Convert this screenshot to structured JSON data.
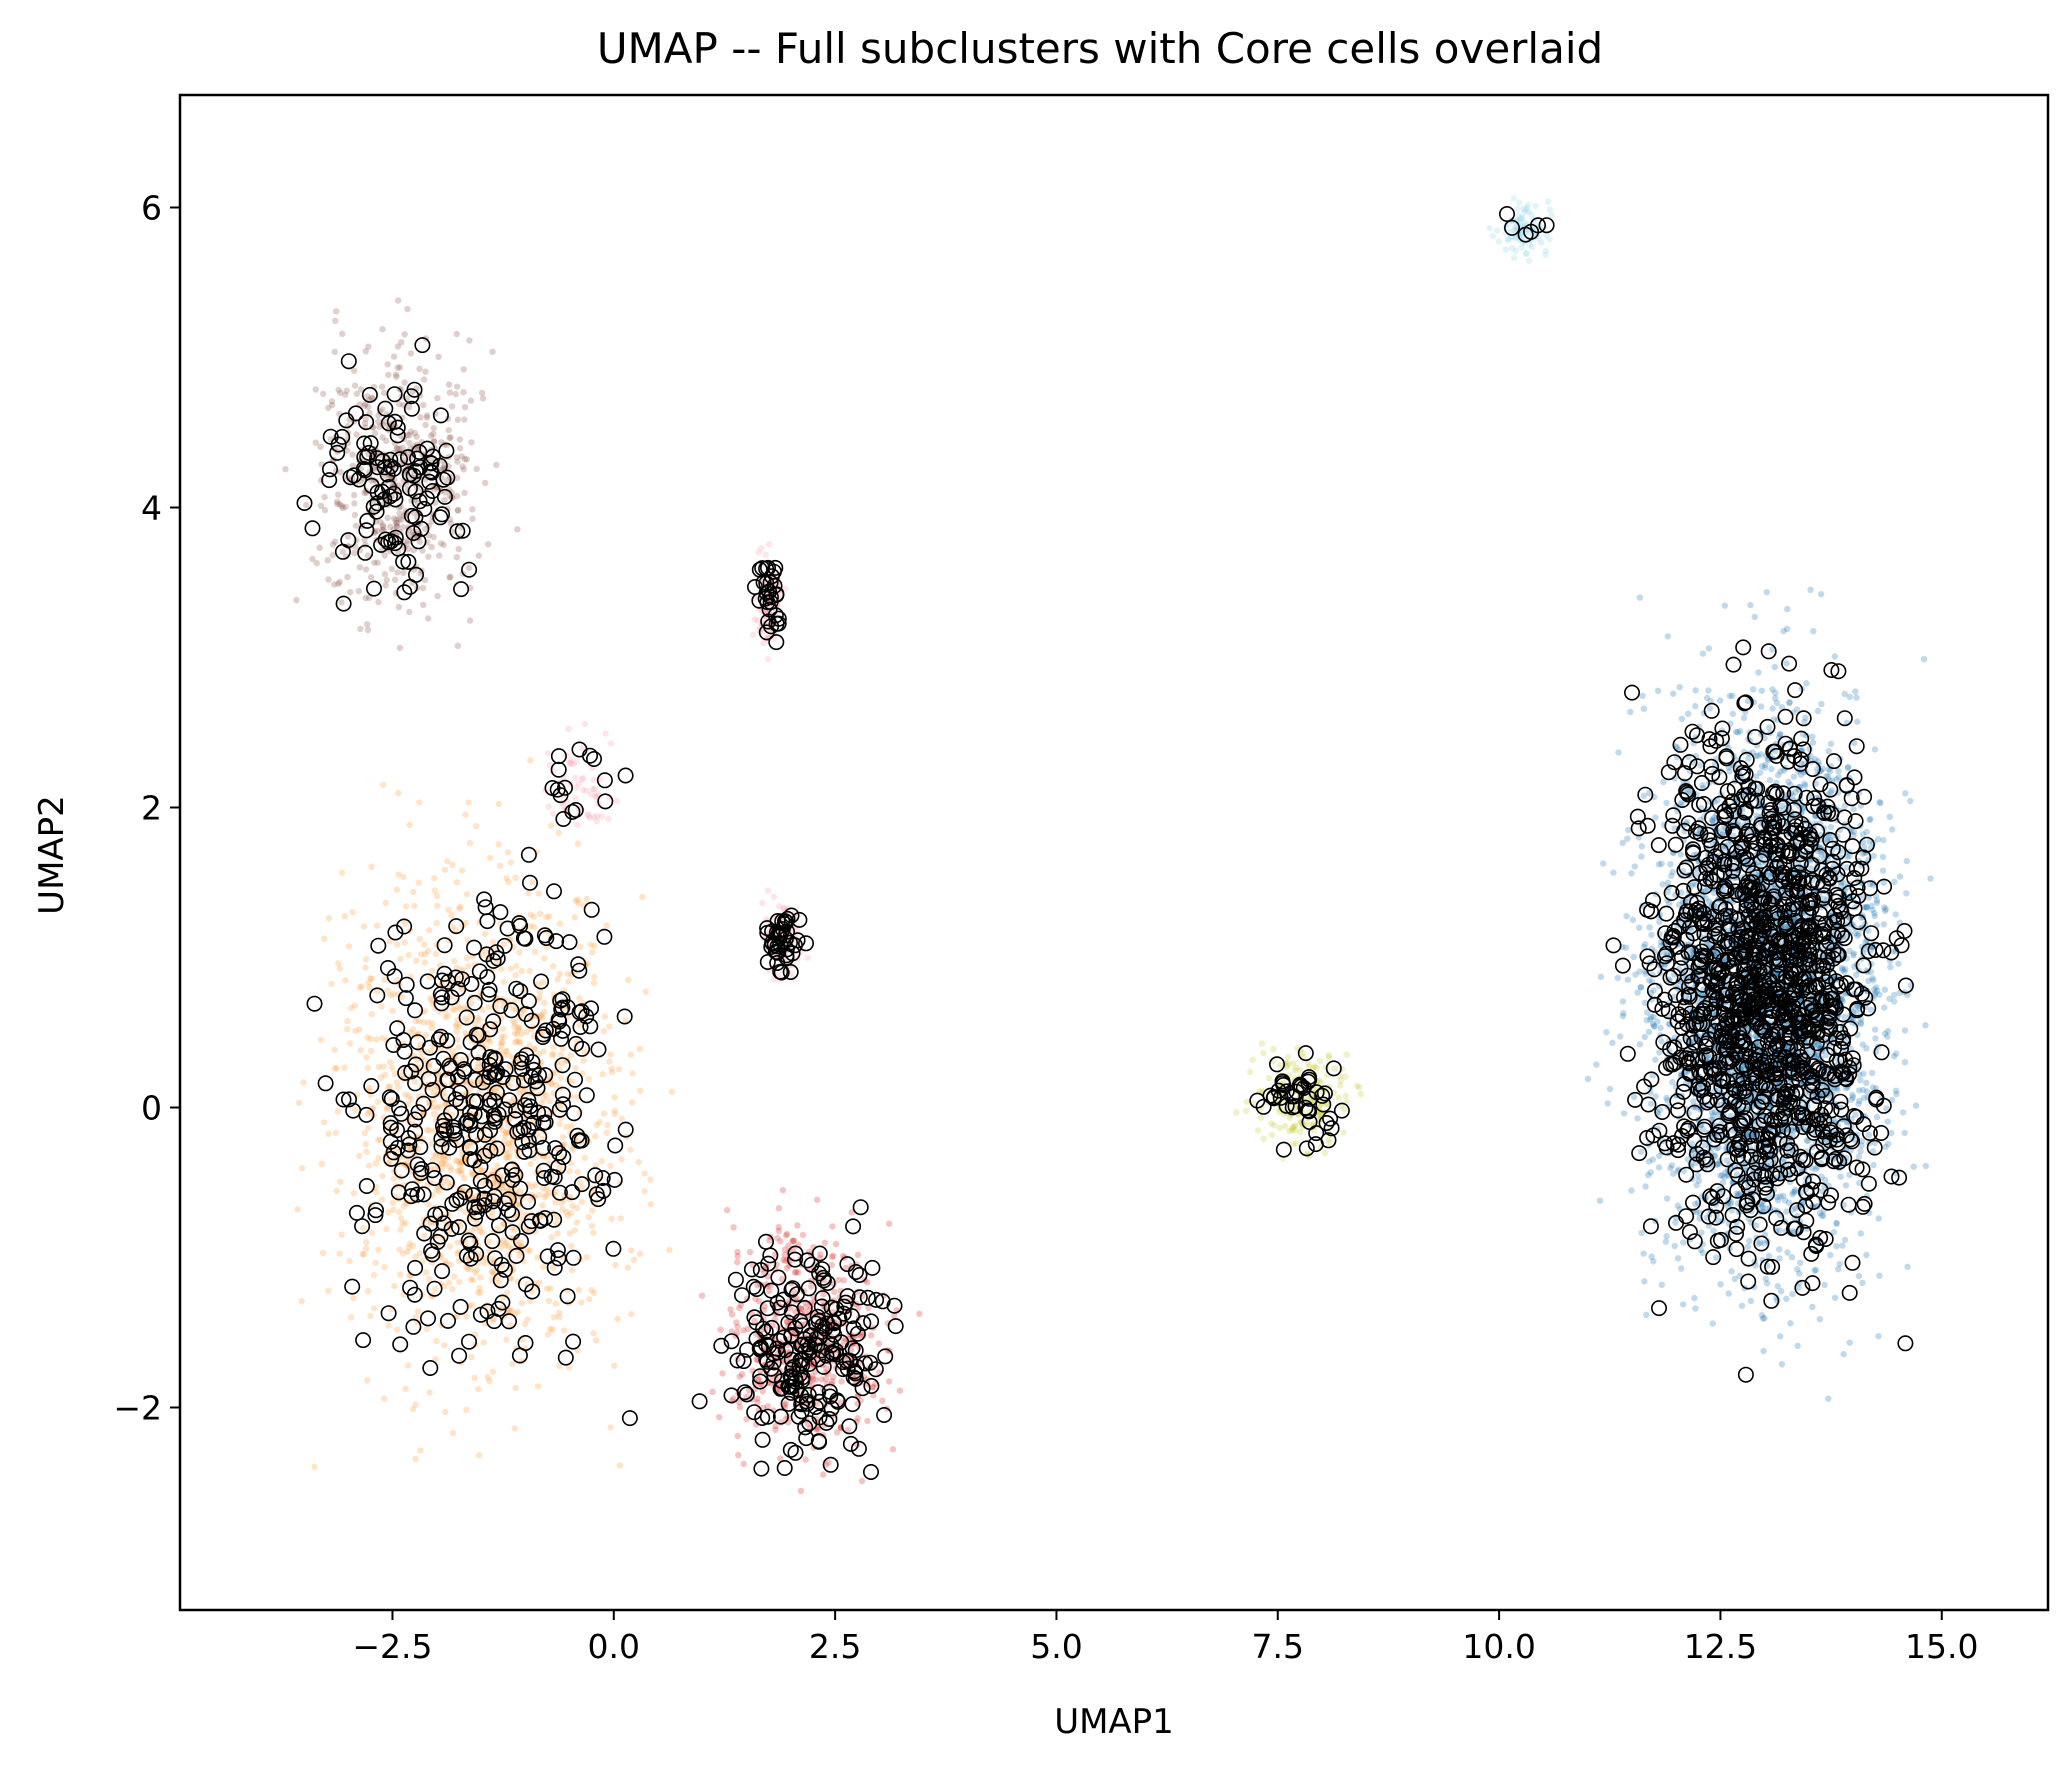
{
  "chart_data": {
    "type": "scatter",
    "title": "UMAP -- Full subclusters with Core cells overlaid",
    "xlabel": "UMAP1",
    "ylabel": "UMAP2",
    "xlim": [
      -4.9,
      16.2
    ],
    "ylim": [
      -3.35,
      6.75
    ],
    "xticks": [
      -2.5,
      0.0,
      2.5,
      5.0,
      7.5,
      10.0,
      12.5,
      15.0
    ],
    "xtick_labels": [
      "−2.5",
      "0.0",
      "2.5",
      "5.0",
      "7.5",
      "10.0",
      "12.5",
      "15.0"
    ],
    "yticks": [
      -2,
      0,
      2,
      4,
      6
    ],
    "ytick_labels": [
      "−2",
      "0",
      "2",
      "4",
      "6"
    ],
    "grid": false,
    "legend": "none",
    "series": [
      {
        "color": "#ff9f40",
        "style": "filled-dot-translucent",
        "cx": -1.5,
        "cy": -0.1,
        "sx": 1.3,
        "sy": 1.3,
        "n_full": 1400,
        "n_core": 380
      },
      {
        "color": "#8c564b",
        "style": "filled-dot-translucent",
        "cx": -2.4,
        "cy": 4.2,
        "sx": 0.75,
        "sy": 0.7,
        "n_full": 500,
        "n_core": 110
      },
      {
        "color": "#d62728",
        "style": "filled-dot-translucent",
        "cx": 2.2,
        "cy": -1.55,
        "sx": 0.75,
        "sy": 0.6,
        "n_full": 480,
        "n_core": 210
      },
      {
        "color": "#f7a1b5",
        "style": "filled-dot-translucent",
        "cx": 1.75,
        "cy": 3.35,
        "sx": 0.12,
        "sy": 0.25,
        "n_full": 90,
        "n_core": 30
      },
      {
        "color": "#f7a1b5",
        "style": "filled-dot-translucent",
        "cx": 1.9,
        "cy": 1.1,
        "sx": 0.18,
        "sy": 0.2,
        "n_full": 90,
        "n_core": 40
      },
      {
        "color": "#f7a1b5",
        "style": "filled-dot-translucent",
        "cx": -0.4,
        "cy": 2.15,
        "sx": 0.35,
        "sy": 0.25,
        "n_full": 60,
        "n_core": 15
      },
      {
        "color": "#c9cc3b",
        "style": "filled-dot-translucent",
        "cx": 7.8,
        "cy": 0.05,
        "sx": 0.45,
        "sy": 0.25,
        "n_full": 200,
        "n_core": 45
      },
      {
        "color": "#9ad8e8",
        "style": "filled-dot-translucent",
        "cx": 10.25,
        "cy": 5.85,
        "sx": 0.25,
        "sy": 0.15,
        "n_full": 90,
        "n_core": 6
      },
      {
        "color": "#1f77b4",
        "style": "filled-dot-translucent",
        "cx": 13.0,
        "cy": 0.8,
        "sx": 1.05,
        "sy": 1.45,
        "n_full": 3600,
        "n_core": 1300
      }
    ],
    "core_overlay": {
      "style": "open-circle",
      "edge_color": "#000000"
    }
  }
}
